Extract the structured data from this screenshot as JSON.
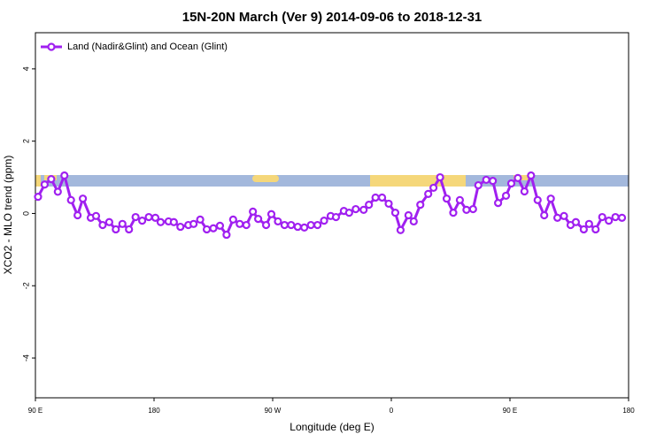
{
  "chart_data": {
    "type": "line",
    "title": "15N-20N March (Ver 9)   2014-09-06 to 2018-12-31",
    "x_label": "Longitude (deg E)",
    "y_label": "XCO2 - MLO trend (ppm)",
    "legend_position": "top-left",
    "xlim": [
      90,
      540
    ],
    "ylim": [
      -5.1,
      5
    ],
    "xticks": [
      {
        "value": 90,
        "label": "90 E"
      },
      180,
      {
        "value": 270,
        "label": "90 W"
      },
      {
        "value": 360,
        "label": "0"
      },
      {
        "value": 450,
        "label": "90 E"
      },
      {
        "value": 540,
        "label": "180"
      }
    ],
    "yticks": [
      -4,
      -2,
      0,
      2,
      4
    ],
    "x": [
      92,
      97,
      102,
      107,
      112,
      117,
      122,
      126,
      132,
      136,
      141,
      146,
      151,
      156,
      161,
      166,
      171,
      176,
      181,
      185,
      191,
      195,
      200,
      206,
      210,
      215,
      220,
      225,
      230,
      235,
      240,
      245,
      250,
      255,
      259,
      265,
      269,
      274,
      279,
      284,
      289,
      294,
      299,
      304,
      309,
      314,
      318,
      324,
      328,
      333,
      339,
      343,
      348,
      353,
      358,
      363,
      367,
      373,
      377,
      382,
      388,
      392,
      397,
      402,
      407,
      412,
      417,
      422,
      426,
      432,
      437,
      441,
      447,
      451,
      456,
      461,
      466,
      471,
      476,
      481,
      486,
      491,
      496,
      500,
      506,
      510,
      515,
      520,
      525,
      530,
      535
    ],
    "series": [
      {
        "name": "Land (Nadir&Glint) and Ocean (Glint)",
        "color": "#a020f0",
        "values": [
          0.46,
          0.8,
          0.95,
          0.6,
          1.05,
          0.37,
          -0.05,
          0.41,
          -0.12,
          -0.07,
          -0.32,
          -0.24,
          -0.44,
          -0.29,
          -0.44,
          -0.1,
          -0.2,
          -0.1,
          -0.12,
          -0.24,
          -0.22,
          -0.24,
          -0.37,
          -0.32,
          -0.29,
          -0.17,
          -0.44,
          -0.41,
          -0.34,
          -0.59,
          -0.17,
          -0.29,
          -0.32,
          0.05,
          -0.15,
          -0.32,
          -0.02,
          -0.22,
          -0.32,
          -0.32,
          -0.37,
          -0.39,
          -0.32,
          -0.32,
          -0.2,
          -0.07,
          -0.1,
          0.07,
          0.02,
          0.12,
          0.1,
          0.24,
          0.44,
          0.44,
          0.27,
          0.02,
          -0.46,
          -0.05,
          -0.22,
          0.24,
          0.54,
          0.71,
          1.0,
          0.41,
          0.02,
          0.37,
          0.1,
          0.12,
          0.78,
          0.93,
          0.9,
          0.29,
          0.49,
          0.83,
          0.98,
          0.61,
          1.05,
          0.37,
          -0.05,
          0.41,
          -0.12,
          -0.07,
          -0.32,
          -0.24,
          -0.44,
          -0.29,
          -0.44,
          -0.1,
          -0.2,
          -0.1,
          -0.12
        ]
      }
    ]
  }
}
